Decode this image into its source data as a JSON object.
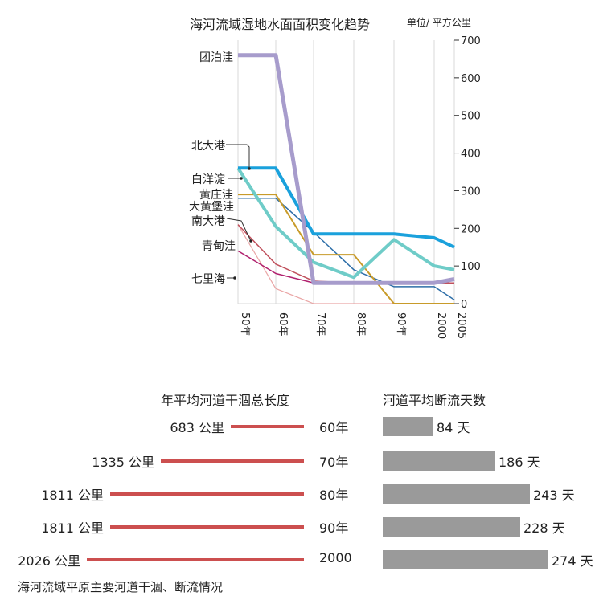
{
  "chart_data": [
    {
      "type": "line",
      "title": "海河流域湿地水面面积变化趋势",
      "unit": "单位/ 平方公里",
      "x": [
        "50年",
        "60年",
        "70年",
        "80年",
        "90年",
        "2000",
        "2005"
      ],
      "ylim": [
        0,
        700
      ],
      "yticks": [
        0,
        100,
        200,
        300,
        400,
        500,
        600,
        700
      ],
      "grid": "vertical",
      "series": [
        {
          "name": "团泊洼",
          "color": "#a79ccc",
          "values": [
            660,
            660,
            55,
            55,
            55,
            55,
            65
          ]
        },
        {
          "name": "北大港",
          "color": "#1aa1dc",
          "values": [
            360,
            360,
            185,
            185,
            185,
            175,
            150
          ]
        },
        {
          "name": "白洋淀",
          "color": "#6fccc8",
          "values": [
            360,
            205,
            110,
            70,
            170,
            100,
            90
          ]
        },
        {
          "name": "黄庄洼",
          "color": "#c89b2a",
          "values": [
            290,
            290,
            130,
            130,
            0,
            0,
            0
          ]
        },
        {
          "name": "大黄堡洼",
          "color": "#2d6ea8",
          "values": [
            280,
            280,
            190,
            90,
            45,
            45,
            10
          ]
        },
        {
          "name": "南大港",
          "color": "#c0505c",
          "values": [
            210,
            105,
            60,
            55,
            55,
            55,
            55
          ]
        },
        {
          "name": "青甸洼",
          "color": "#eaa6a6",
          "values": [
            210,
            40,
            0,
            0,
            0,
            0,
            0
          ]
        },
        {
          "name": "七里海",
          "color": "#b0206e",
          "values": [
            140,
            80,
            55,
            55,
            55,
            55,
            55
          ]
        }
      ]
    },
    {
      "type": "bar",
      "title": "年平均河道干涸总长度",
      "categories": [
        "60年",
        "70年",
        "80年",
        "90年",
        "2000"
      ],
      "values": [
        683,
        1335,
        1811,
        1811,
        2026
      ],
      "labels": [
        "683 公里",
        "1335 公里",
        "1811 公里",
        "1811 公里",
        "2026 公里"
      ],
      "color": "#cc4f4f"
    },
    {
      "type": "bar",
      "title": "河道平均断流天数",
      "categories": [
        "60年",
        "70年",
        "80年",
        "90年",
        "2000"
      ],
      "values": [
        84,
        186,
        243,
        228,
        274
      ],
      "labels": [
        "84 天",
        "186 天",
        "243 天",
        "228 天",
        "274 天"
      ],
      "color": "#9a9a9a"
    }
  ],
  "caption": "海河流域平原主要河道干涸、断流情况"
}
